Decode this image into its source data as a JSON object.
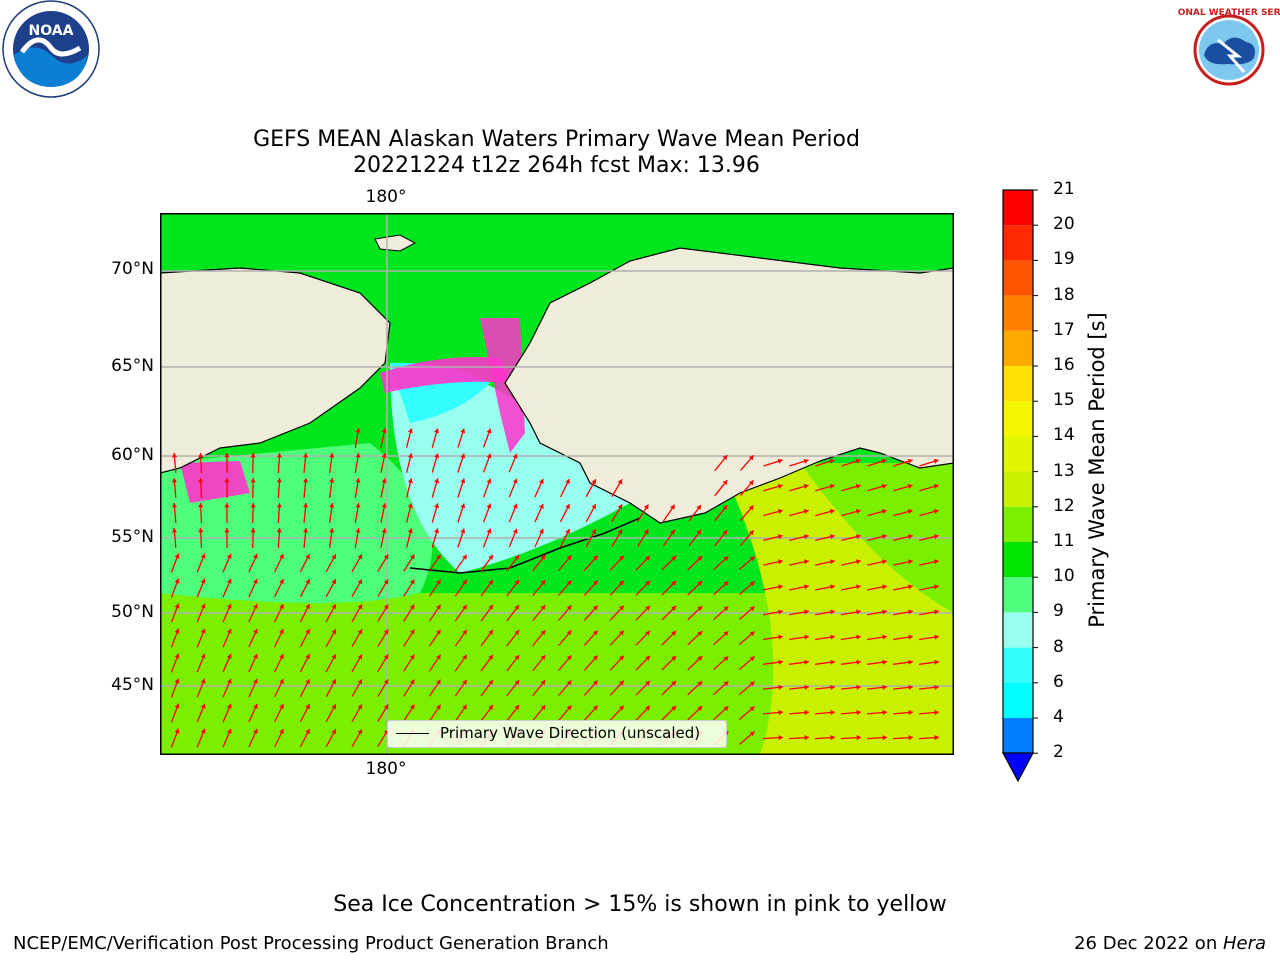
{
  "header": {
    "title_line1": "GEFS MEAN Alaskan Waters Primary Wave Mean Period",
    "title_line2": "20221224 t12z 264h fcst   Max: 13.96"
  },
  "logos": {
    "left": {
      "name": "noaa-logo",
      "text": "NOAA"
    },
    "right": {
      "name": "nws-logo",
      "text": "NATIONAL WEATHER SERVICE"
    }
  },
  "map": {
    "lat_labels": [
      "70°N",
      "65°N",
      "60°N",
      "55°N",
      "50°N",
      "45°N"
    ],
    "lon_label_top": "180°",
    "lon_label_bottom": "180°",
    "legend": "Primary Wave Direction (unscaled)",
    "colors": {
      "land": "#efedd9",
      "ocean_low": "#4dff7a",
      "ocean_mid": "#00e61e",
      "ocean_high": "#c8f000",
      "arrow": "#ff0000",
      "ice_pink": "#ff33cc"
    }
  },
  "colorbar": {
    "label": "Primary Wave Mean Period [s]",
    "ticks": [
      "21",
      "20",
      "19",
      "18",
      "17",
      "16",
      "15",
      "14",
      "13",
      "12",
      "11",
      "10",
      "9",
      "8",
      "6",
      "4",
      "2"
    ],
    "colors": [
      "#ff0000",
      "#ff2a00",
      "#ff5500",
      "#ff8000",
      "#ffaa00",
      "#ffe000",
      "#f5f500",
      "#e0f500",
      "#c8f000",
      "#7af000",
      "#00e600",
      "#4dff7a",
      "#99ffee",
      "#33ffff",
      "#00ffff",
      "#0080ff",
      "#0000ff"
    ]
  },
  "footer": {
    "note": "Sea Ice Concentration > 15% is shown in pink to yellow",
    "branch": "NCEP/EMC/Verification Post Processing Product Generation Branch",
    "date": "26 Dec 2022 on ",
    "host": "Hera"
  }
}
